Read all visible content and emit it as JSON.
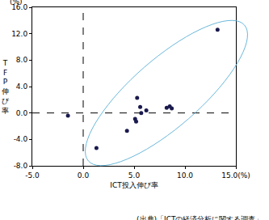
{
  "chart_data": {
    "type": "scatter",
    "x_label": "ICT投入伸び率",
    "y_label": "TFP伸び率",
    "x": [
      -1.5,
      1.3,
      4.3,
      5.1,
      5.2,
      5.3,
      5.6,
      5.7,
      6.2,
      8.2,
      8.5,
      8.7,
      13.2
    ],
    "values": [
      -0.4,
      -5.3,
      -2.7,
      -0.9,
      -1.3,
      2.3,
      0.9,
      0.0,
      0.4,
      0.8,
      1.0,
      0.7,
      12.6
    ],
    "color": "#1a1a4e",
    "marker": "circle",
    "xlim": [
      -5,
      15
    ],
    "xticks": [
      {
        "value": -5,
        "label": "-5.0"
      },
      {
        "value": 0,
        "label": "0.0"
      },
      {
        "value": 5,
        "label": "5.0"
      },
      {
        "value": 10,
        "label": "10.0"
      },
      {
        "value": 15,
        "label": "15.0(%)"
      }
    ],
    "ylim": [
      -8,
      16
    ],
    "yticks": [
      {
        "value": -8,
        "label": "-8.0"
      },
      {
        "value": -4,
        "label": "-4.0"
      },
      {
        "value": 0,
        "label": "0.0"
      },
      {
        "value": 4,
        "label": "4.0"
      },
      {
        "value": 8,
        "label": "8.0"
      },
      {
        "value": 12,
        "label": "12.0"
      },
      {
        "value": 16,
        "label": "16.0"
      }
    ],
    "grid": false,
    "annotations": [
      {
        "text": "(%)"
      },
      {
        "text": "(出典)「ICTの経済分析に関する調査」"
      }
    ]
  }
}
